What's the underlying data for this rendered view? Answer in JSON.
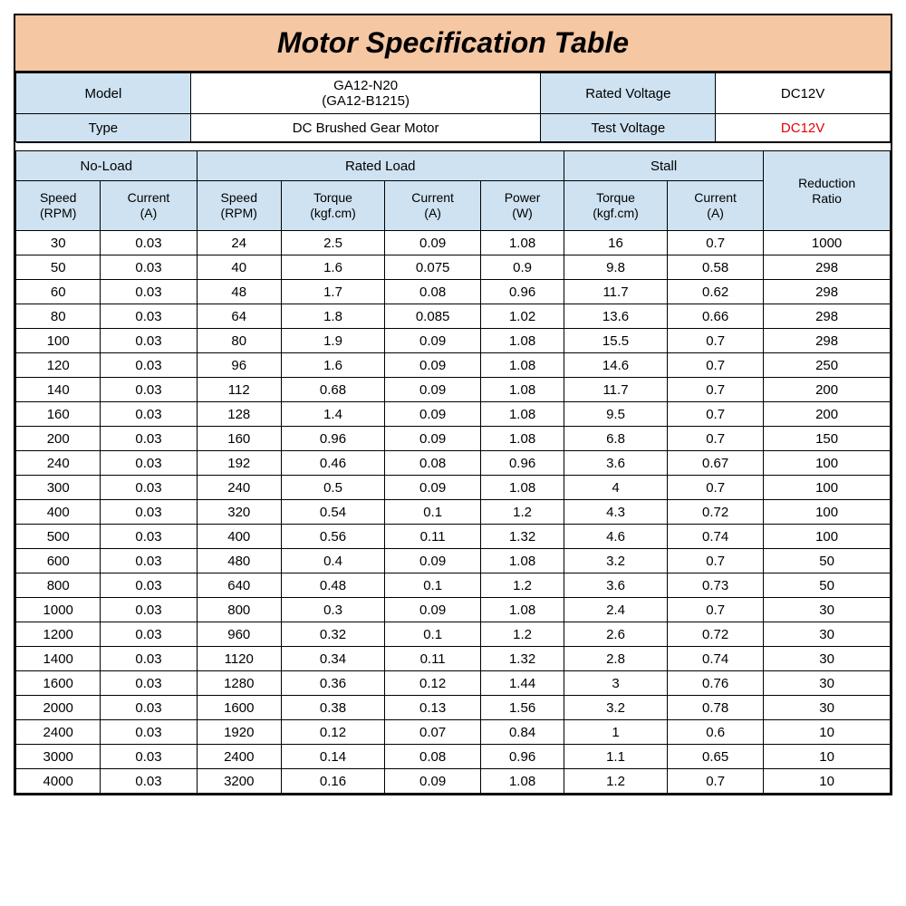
{
  "title": "Motor Specification Table",
  "meta": {
    "model_label": "Model",
    "model_value_line1": "GA12-N20",
    "model_value_line2": "(GA12-B1215)",
    "rated_voltage_label": "Rated Voltage",
    "rated_voltage_value": "DC12V",
    "type_label": "Type",
    "type_value": "DC Brushed Gear Motor",
    "test_voltage_label": "Test Voltage",
    "test_voltage_value": "DC12V"
  },
  "headers": {
    "noload": "No-Load",
    "ratedload": "Rated Load",
    "stall": "Stall",
    "reduction": "Reduction\nRatio",
    "speed_rpm": "Speed\n(RPM)",
    "current_a": "Current\n(A)",
    "torque_kgfcm": "Torque\n(kgf.cm)",
    "power_w": "Power\n(W)"
  },
  "rows": [
    [
      "30",
      "0.03",
      "24",
      "2.5",
      "0.09",
      "1.08",
      "16",
      "0.7",
      "1000"
    ],
    [
      "50",
      "0.03",
      "40",
      "1.6",
      "0.075",
      "0.9",
      "9.8",
      "0.58",
      "298"
    ],
    [
      "60",
      "0.03",
      "48",
      "1.7",
      "0.08",
      "0.96",
      "11.7",
      "0.62",
      "298"
    ],
    [
      "80",
      "0.03",
      "64",
      "1.8",
      "0.085",
      "1.02",
      "13.6",
      "0.66",
      "298"
    ],
    [
      "100",
      "0.03",
      "80",
      "1.9",
      "0.09",
      "1.08",
      "15.5",
      "0.7",
      "298"
    ],
    [
      "120",
      "0.03",
      "96",
      "1.6",
      "0.09",
      "1.08",
      "14.6",
      "0.7",
      "250"
    ],
    [
      "140",
      "0.03",
      "112",
      "0.68",
      "0.09",
      "1.08",
      "11.7",
      "0.7",
      "200"
    ],
    [
      "160",
      "0.03",
      "128",
      "1.4",
      "0.09",
      "1.08",
      "9.5",
      "0.7",
      "200"
    ],
    [
      "200",
      "0.03",
      "160",
      "0.96",
      "0.09",
      "1.08",
      "6.8",
      "0.7",
      "150"
    ],
    [
      "240",
      "0.03",
      "192",
      "0.46",
      "0.08",
      "0.96",
      "3.6",
      "0.67",
      "100"
    ],
    [
      "300",
      "0.03",
      "240",
      "0.5",
      "0.09",
      "1.08",
      "4",
      "0.7",
      "100"
    ],
    [
      "400",
      "0.03",
      "320",
      "0.54",
      "0.1",
      "1.2",
      "4.3",
      "0.72",
      "100"
    ],
    [
      "500",
      "0.03",
      "400",
      "0.56",
      "0.11",
      "1.32",
      "4.6",
      "0.74",
      "100"
    ],
    [
      "600",
      "0.03",
      "480",
      "0.4",
      "0.09",
      "1.08",
      "3.2",
      "0.7",
      "50"
    ],
    [
      "800",
      "0.03",
      "640",
      "0.48",
      "0.1",
      "1.2",
      "3.6",
      "0.73",
      "50"
    ],
    [
      "1000",
      "0.03",
      "800",
      "0.3",
      "0.09",
      "1.08",
      "2.4",
      "0.7",
      "30"
    ],
    [
      "1200",
      "0.03",
      "960",
      "0.32",
      "0.1",
      "1.2",
      "2.6",
      "0.72",
      "30"
    ],
    [
      "1400",
      "0.03",
      "1120",
      "0.34",
      "0.11",
      "1.32",
      "2.8",
      "0.74",
      "30"
    ],
    [
      "1600",
      "0.03",
      "1280",
      "0.36",
      "0.12",
      "1.44",
      "3",
      "0.76",
      "30"
    ],
    [
      "2000",
      "0.03",
      "1600",
      "0.38",
      "0.13",
      "1.56",
      "3.2",
      "0.78",
      "30"
    ],
    [
      "2400",
      "0.03",
      "1920",
      "0.12",
      "0.07",
      "0.84",
      "1",
      "0.6",
      "10"
    ],
    [
      "3000",
      "0.03",
      "2400",
      "0.14",
      "0.08",
      "0.96",
      "1.1",
      "0.65",
      "10"
    ],
    [
      "4000",
      "0.03",
      "3200",
      "0.16",
      "0.09",
      "1.08",
      "1.2",
      "0.7",
      "10"
    ]
  ],
  "style": {
    "title_bg": "#f5c7a3",
    "header_bg": "#cee2f1",
    "border_color": "#000000",
    "red_text": "#e60000",
    "title_fontsize": 32,
    "cell_fontsize": 15
  }
}
